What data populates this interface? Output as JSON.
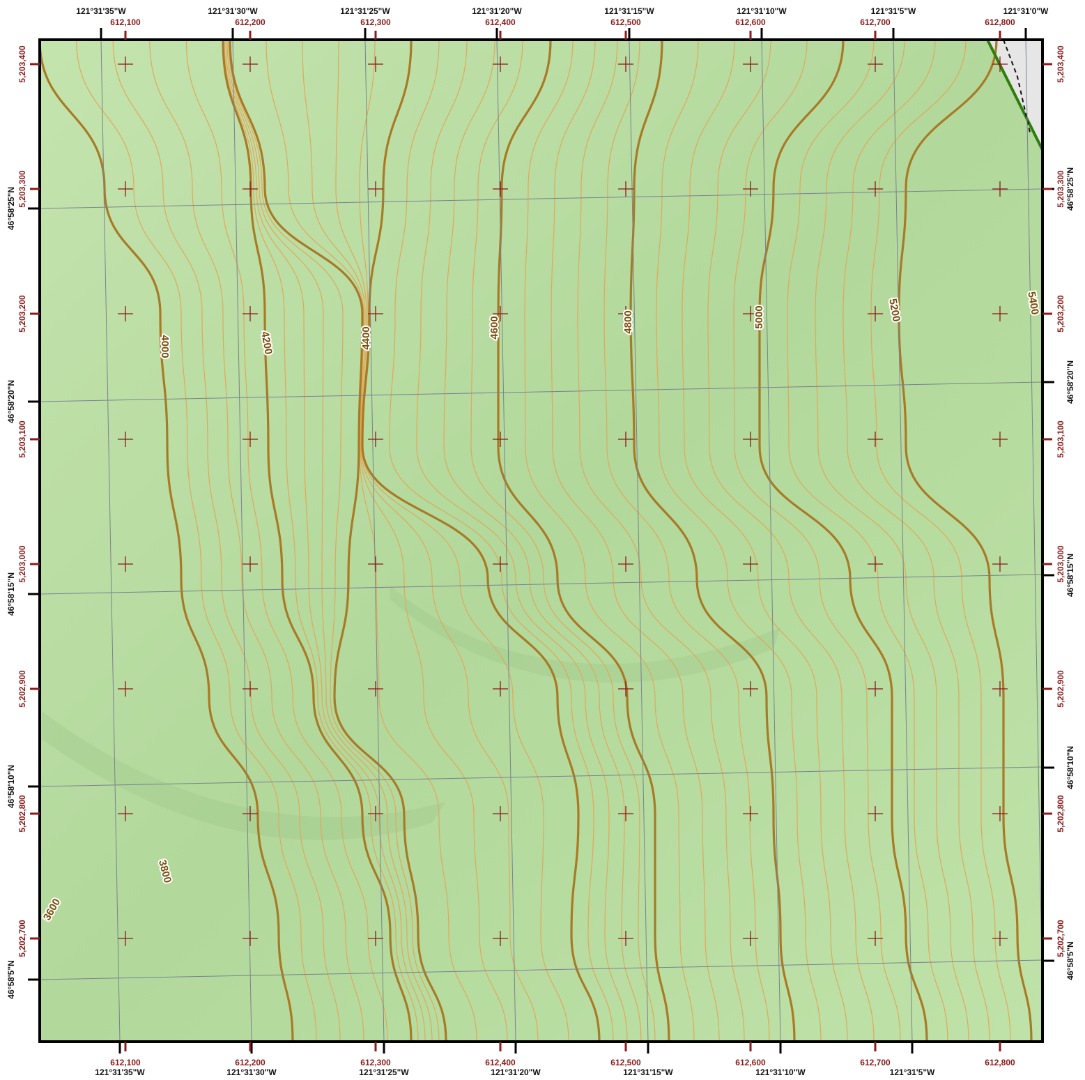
{
  "map": {
    "colors": {
      "terrain": "#bfe2a8",
      "terrain_shade": "#9fc58a",
      "index_contour": "#a97a25",
      "minor_contour": "#e0a85a",
      "graticule": "#7a8290",
      "utm_grid": "#8b1a1a",
      "boundary": "#2e7d0d",
      "frame": "#000000",
      "glacier": "#e6e6e6"
    },
    "geo_top_labels": [
      "121°31'35\"W",
      "121°31'30\"W",
      "121°31'25\"W",
      "121°31'20\"W",
      "121°31'15\"W",
      "121°31'10\"W",
      "121°31'5\"W",
      "121°31'0\"W"
    ],
    "geo_bottom_labels": [
      "121°31'35\"W",
      "121°31'30\"W",
      "121°31'25\"W",
      "121°31'20\"W",
      "121°31'15\"W",
      "121°31'10\"W",
      "121°31'5\"W"
    ],
    "geo_left_labels": [
      "46°58'25\"N",
      "46°58'20\"N",
      "46°58'15\"N",
      "46°58'10\"N",
      "46°58'5\"N"
    ],
    "geo_right_labels": [
      "46°58'25\"N",
      "46°58'20\"N",
      "46°58'15\"N",
      "46°58'10\"N",
      "46°58'5\"N"
    ],
    "utm_easting_labels": [
      "612,100",
      "612,200",
      "612,300",
      "612,400",
      "612,500",
      "612,600",
      "612,700",
      "612,800"
    ],
    "utm_northing_labels": [
      "5,203,400",
      "5,203,300",
      "5,203,200",
      "5,203,100",
      "5,203,000",
      "5,202,900",
      "5,202,800",
      "5,202,700"
    ],
    "contour_labels": [
      "3600",
      "3800",
      "4000",
      "4200",
      "4400",
      "4600",
      "4800",
      "5000",
      "5200",
      "5400"
    ],
    "contour_interval_minor": 40,
    "contour_interval_index": 200
  }
}
